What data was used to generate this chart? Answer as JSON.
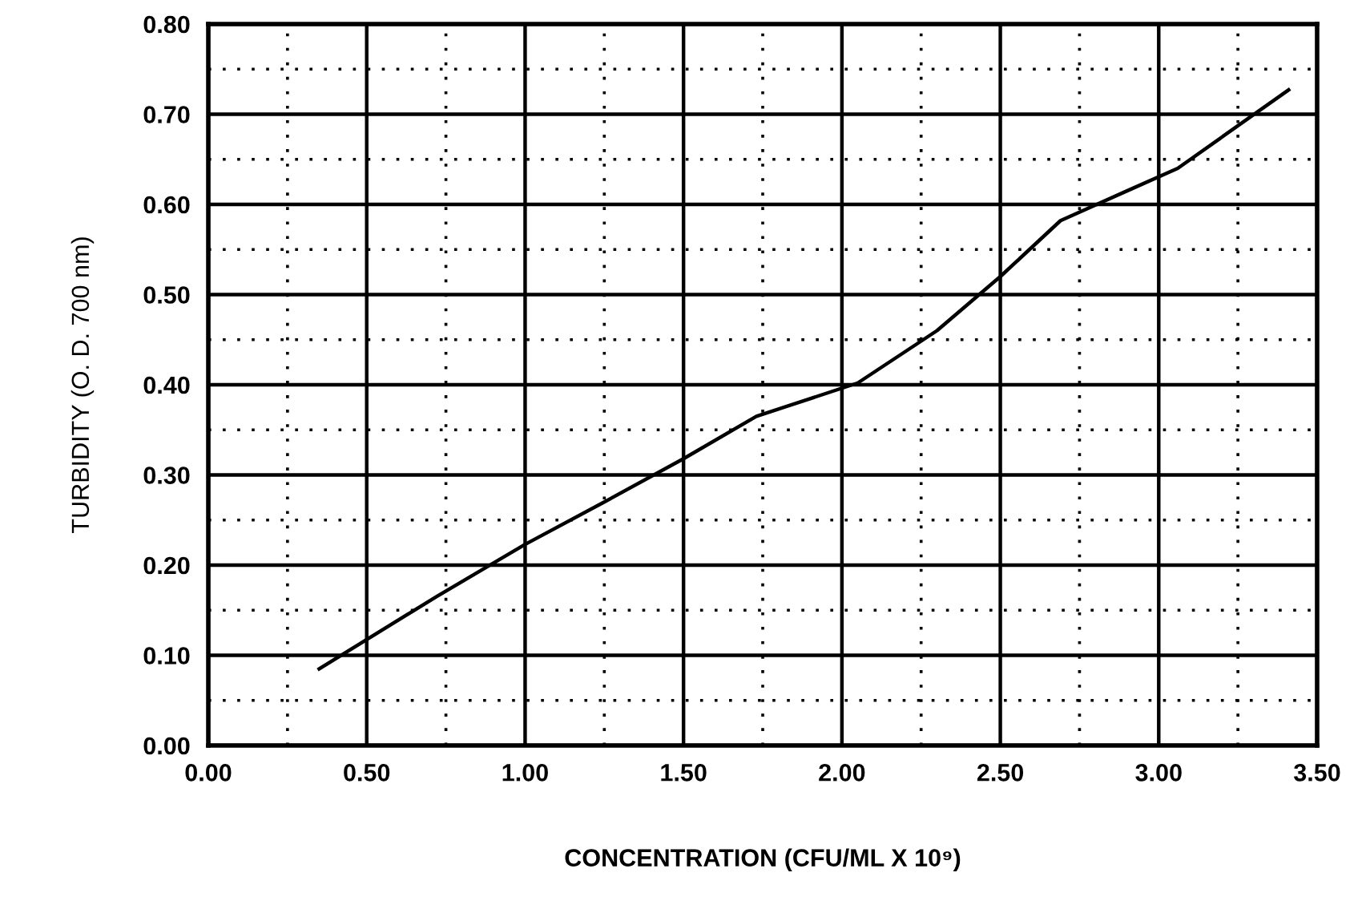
{
  "chart_data": {
    "type": "line",
    "xlabel": "CONCENTRATION (CFU/ML X 10⁹)",
    "ylabel": "TURBIDITY (O. D. 700 nm)",
    "xlim": [
      0,
      3.5
    ],
    "ylim": [
      0,
      0.8
    ],
    "xticks": [
      {
        "value": 0,
        "label": "0.00"
      },
      {
        "value": 0.25,
        "label": null
      },
      {
        "value": 0.5,
        "label": "0.50"
      },
      {
        "value": 0.75,
        "label": null
      },
      {
        "value": 1,
        "label": "1.00"
      },
      {
        "value": 1.25,
        "label": null
      },
      {
        "value": 1.5,
        "label": "1.50"
      },
      {
        "value": 1.75,
        "label": null
      },
      {
        "value": 2,
        "label": "2.00"
      },
      {
        "value": 2.25,
        "label": null
      },
      {
        "value": 2.5,
        "label": "2.50"
      },
      {
        "value": 2.75,
        "label": null
      },
      {
        "value": 3,
        "label": "3.00"
      },
      {
        "value": 3.25,
        "label": null
      },
      {
        "value": 3.5,
        "label": "3.50"
      }
    ],
    "yticks": [
      {
        "value": 0,
        "label": "0.00"
      },
      {
        "value": 0.05,
        "label": null
      },
      {
        "value": 0.1,
        "label": "0.10"
      },
      {
        "value": 0.15,
        "label": null
      },
      {
        "value": 0.2,
        "label": "0.20"
      },
      {
        "value": 0.25,
        "label": null
      },
      {
        "value": 0.3,
        "label": "0.30"
      },
      {
        "value": 0.35,
        "label": null
      },
      {
        "value": 0.4,
        "label": "0.40"
      },
      {
        "value": 0.45,
        "label": null
      },
      {
        "value": 0.5,
        "label": "0.50"
      },
      {
        "value": 0.55,
        "label": null
      },
      {
        "value": 0.6,
        "label": "0.60"
      },
      {
        "value": 0.65,
        "label": null
      },
      {
        "value": 0.7,
        "label": "0.70"
      },
      {
        "value": 0.75,
        "label": null
      },
      {
        "value": 0.8,
        "label": "0.80"
      }
    ],
    "grid": true,
    "series": [
      {
        "color": "#000000",
        "x": [
          0.35,
          0.72,
          1.0,
          1.25,
          1.5,
          1.73,
          2.05,
          2.3,
          2.5,
          2.69,
          2.9,
          3.06,
          3.41
        ],
        "values": [
          0.085,
          0.165,
          0.223,
          0.27,
          0.318,
          0.365,
          0.402,
          0.46,
          0.52,
          0.582,
          0.615,
          0.64,
          0.727
        ]
      }
    ]
  }
}
